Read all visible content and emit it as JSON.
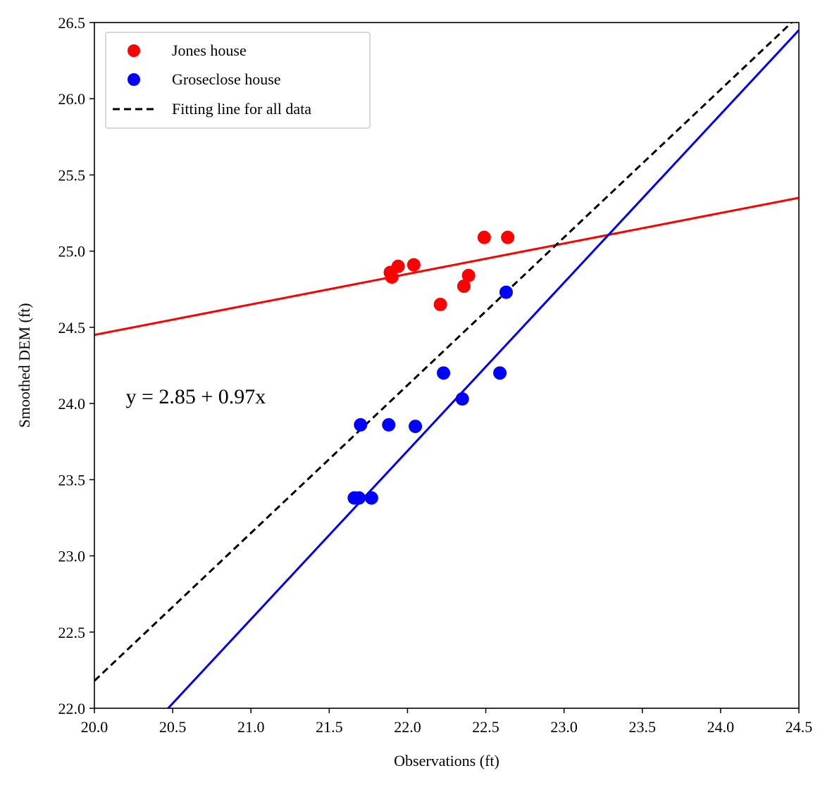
{
  "chart_data": {
    "type": "scatter",
    "title": "",
    "xlabel": "Observations (ft)",
    "ylabel": "Smoothed DEM (ft)",
    "xlim": [
      20.0,
      24.5
    ],
    "ylim": [
      22.0,
      26.5
    ],
    "xticks": [
      "20.0",
      "20.5",
      "21.0",
      "21.5",
      "22.0",
      "22.5",
      "23.0",
      "23.5",
      "24.0",
      "24.5"
    ],
    "yticks": [
      "22.0",
      "22.5",
      "23.0",
      "23.5",
      "24.0",
      "24.5",
      "25.0",
      "25.5",
      "26.0",
      "26.5"
    ],
    "grid": false,
    "legend_position": "top-left",
    "series": [
      {
        "name": "Jones house",
        "kind": "scatter",
        "color": "#ff0000",
        "points": [
          [
            21.89,
            24.86
          ],
          [
            21.9,
            24.83
          ],
          [
            21.94,
            24.9
          ],
          [
            22.04,
            24.91
          ],
          [
            22.21,
            24.65
          ],
          [
            22.36,
            24.77
          ],
          [
            22.39,
            24.84
          ],
          [
            22.49,
            25.09
          ],
          [
            22.64,
            25.09
          ]
        ]
      },
      {
        "name": "Groseclose house",
        "kind": "scatter",
        "color": "#0000ff",
        "points": [
          [
            21.66,
            23.38
          ],
          [
            21.69,
            23.38
          ],
          [
            21.77,
            23.38
          ],
          [
            21.7,
            23.86
          ],
          [
            21.88,
            23.86
          ],
          [
            22.05,
            23.85
          ],
          [
            22.23,
            24.2
          ],
          [
            22.35,
            24.03
          ],
          [
            22.59,
            24.2
          ],
          [
            22.63,
            24.73
          ]
        ]
      },
      {
        "name": "Fitting line for all data",
        "kind": "line",
        "style": "dashed",
        "color": "#000000",
        "x": [
          20.0,
          24.5
        ],
        "y": [
          22.18,
          26.545
        ]
      },
      {
        "name": "Jones house fit",
        "kind": "line",
        "style": "solid",
        "color": "#ff0000",
        "in_legend": false,
        "x": [
          20.0,
          24.5
        ],
        "y": [
          24.45,
          25.35
        ]
      },
      {
        "name": "Groseclose house fit",
        "kind": "line",
        "style": "solid",
        "color": "#0000ff",
        "in_legend": false,
        "x": [
          20.0,
          24.5
        ],
        "y": [
          21.48,
          26.45
        ]
      }
    ],
    "annotations": [
      {
        "text": "y = 2.85 + 0.97x",
        "x": 20.2,
        "y": 24.0
      }
    ]
  }
}
